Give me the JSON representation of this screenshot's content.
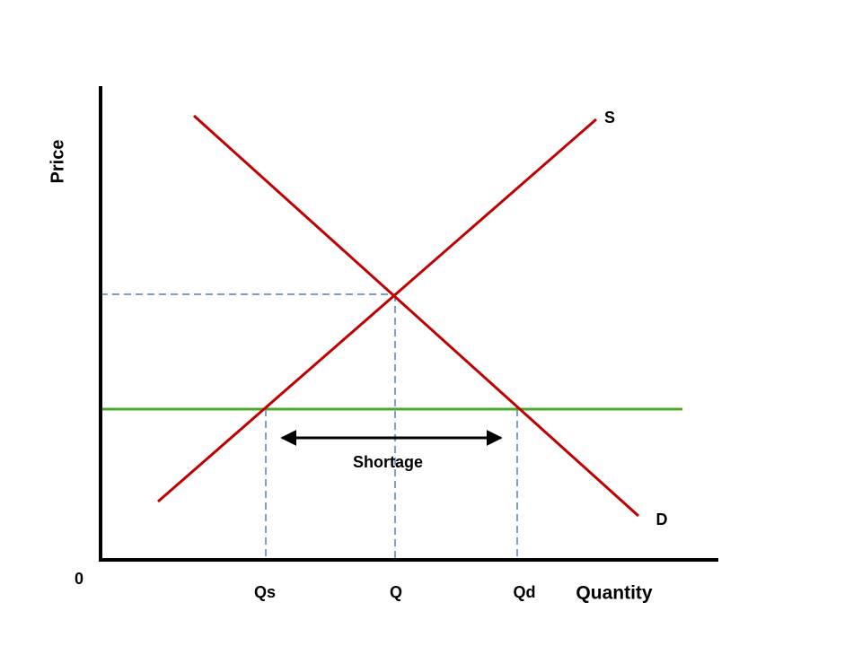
{
  "axes": {
    "y_label": "Price",
    "x_label": "Quantity",
    "origin": "0"
  },
  "curves": {
    "supply": "S",
    "demand": "D"
  },
  "quantities": {
    "qs": "Qs",
    "q": "Q",
    "qd": "Qd"
  },
  "annotation": "Shortage"
}
